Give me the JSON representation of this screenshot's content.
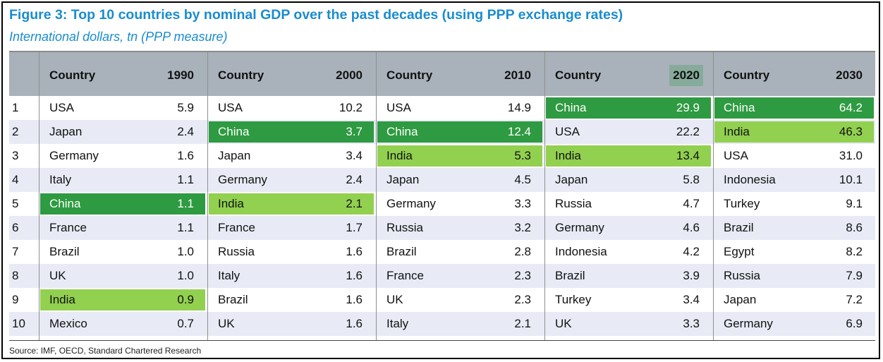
{
  "title": "Figure 3: Top 10 countries by nominal GDP over the past decades (using PPP exchange rates)",
  "subtitle": "International dollars, tn (PPP measure)",
  "source": "Source: IMF, OECD, Standard Chartered Research",
  "colors": {
    "title": "#1a8ccd",
    "header_bg": "#a9b2ba",
    "row_alt_bg": "#e8ebf5",
    "china_highlight": "#2e9a41",
    "india_highlight": "#92d050",
    "year_2020_box": "#86ab9a"
  },
  "chart_data": {
    "type": "table",
    "ranks": [
      "1",
      "2",
      "3",
      "4",
      "5",
      "6",
      "7",
      "8",
      "9",
      "10"
    ],
    "groups": [
      {
        "country_header": "Country",
        "year": "1990",
        "year_boxed": false,
        "rows": [
          {
            "country": "USA",
            "value": "5.9",
            "highlight": ""
          },
          {
            "country": "Japan",
            "value": "2.4",
            "highlight": ""
          },
          {
            "country": "Germany",
            "value": "1.6",
            "highlight": ""
          },
          {
            "country": "Italy",
            "value": "1.1",
            "highlight": ""
          },
          {
            "country": "China",
            "value": "1.1",
            "highlight": "dark"
          },
          {
            "country": "France",
            "value": "1.1",
            "highlight": ""
          },
          {
            "country": "Brazil",
            "value": "1.0",
            "highlight": ""
          },
          {
            "country": "UK",
            "value": "1.0",
            "highlight": ""
          },
          {
            "country": "India",
            "value": "0.9",
            "highlight": "light"
          },
          {
            "country": "Mexico",
            "value": "0.7",
            "highlight": ""
          }
        ]
      },
      {
        "country_header": "Country",
        "year": "2000",
        "year_boxed": false,
        "rows": [
          {
            "country": "USA",
            "value": "10.2",
            "highlight": ""
          },
          {
            "country": "China",
            "value": "3.7",
            "highlight": "dark"
          },
          {
            "country": "Japan",
            "value": "3.4",
            "highlight": ""
          },
          {
            "country": "Germany",
            "value": "2.4",
            "highlight": ""
          },
          {
            "country": "India",
            "value": "2.1",
            "highlight": "light"
          },
          {
            "country": "France",
            "value": "1.7",
            "highlight": ""
          },
          {
            "country": "Russia",
            "value": "1.6",
            "highlight": ""
          },
          {
            "country": "Italy",
            "value": "1.6",
            "highlight": ""
          },
          {
            "country": "Brazil",
            "value": "1.6",
            "highlight": ""
          },
          {
            "country": "UK",
            "value": "1.6",
            "highlight": ""
          }
        ]
      },
      {
        "country_header": "Country",
        "year": "2010",
        "year_boxed": false,
        "rows": [
          {
            "country": "USA",
            "value": "14.9",
            "highlight": ""
          },
          {
            "country": "China",
            "value": "12.4",
            "highlight": "dark"
          },
          {
            "country": "India",
            "value": "5.3",
            "highlight": "light"
          },
          {
            "country": "Japan",
            "value": "4.5",
            "highlight": ""
          },
          {
            "country": "Germany",
            "value": "3.3",
            "highlight": ""
          },
          {
            "country": "Russia",
            "value": "3.2",
            "highlight": ""
          },
          {
            "country": "Brazil",
            "value": "2.8",
            "highlight": ""
          },
          {
            "country": "France",
            "value": "2.3",
            "highlight": ""
          },
          {
            "country": "UK",
            "value": "2.3",
            "highlight": ""
          },
          {
            "country": "Italy",
            "value": "2.1",
            "highlight": ""
          }
        ]
      },
      {
        "country_header": "Country",
        "year": "2020",
        "year_boxed": true,
        "rows": [
          {
            "country": "China",
            "value": "29.9",
            "highlight": "dark"
          },
          {
            "country": "USA",
            "value": "22.2",
            "highlight": ""
          },
          {
            "country": "India",
            "value": "13.4",
            "highlight": "light"
          },
          {
            "country": "Japan",
            "value": "5.8",
            "highlight": ""
          },
          {
            "country": "Russia",
            "value": "4.7",
            "highlight": ""
          },
          {
            "country": "Germany",
            "value": "4.6",
            "highlight": ""
          },
          {
            "country": "Indonesia",
            "value": "4.2",
            "highlight": ""
          },
          {
            "country": "Brazil",
            "value": "3.9",
            "highlight": ""
          },
          {
            "country": "Turkey",
            "value": "3.4",
            "highlight": ""
          },
          {
            "country": "UK",
            "value": "3.3",
            "highlight": ""
          }
        ]
      },
      {
        "country_header": "Country",
        "year": "2030",
        "year_boxed": false,
        "rows": [
          {
            "country": "China",
            "value": "64.2",
            "highlight": "dark"
          },
          {
            "country": "India",
            "value": "46.3",
            "highlight": "light"
          },
          {
            "country": "USA",
            "value": "31.0",
            "highlight": ""
          },
          {
            "country": "Indonesia",
            "value": "10.1",
            "highlight": ""
          },
          {
            "country": "Turkey",
            "value": "9.1",
            "highlight": ""
          },
          {
            "country": "Brazil",
            "value": "8.6",
            "highlight": ""
          },
          {
            "country": "Egypt",
            "value": "8.2",
            "highlight": ""
          },
          {
            "country": "Russia",
            "value": "7.9",
            "highlight": ""
          },
          {
            "country": "Japan",
            "value": "7.2",
            "highlight": ""
          },
          {
            "country": "Germany",
            "value": "6.9",
            "highlight": ""
          }
        ]
      }
    ]
  }
}
